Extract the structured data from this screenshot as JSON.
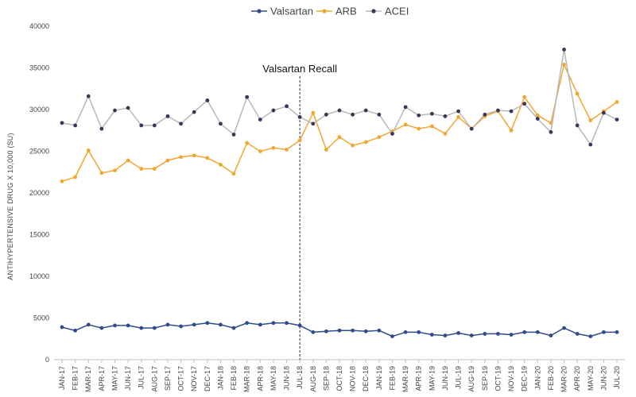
{
  "chart_data": {
    "type": "line",
    "title": "",
    "xlabel": "",
    "ylabel": "ANTIHYPERTENSIVE DRUG X 10,000 (SU)",
    "ylim": [
      0,
      40000
    ],
    "yticks": [
      0,
      5000,
      10000,
      15000,
      20000,
      25000,
      30000,
      35000,
      40000
    ],
    "legend_position": "top-center",
    "grid": false,
    "categories": [
      "JAN-17",
      "FEB-17",
      "MAR-17",
      "APR-17",
      "MAY-17",
      "JUN-17",
      "JUL-17",
      "AUG-17",
      "SEP-17",
      "OCT-17",
      "NOV-17",
      "DEC-17",
      "JAN-18",
      "FEB-18",
      "MAR-18",
      "APR-18",
      "MAY-18",
      "JUN-18",
      "JUL-18",
      "AUG-18",
      "SEP-18",
      "OCT-18",
      "NOV-18",
      "DEC-18",
      "JAN-19",
      "FEB-19",
      "MAR-19",
      "APR-19",
      "MAY-19",
      "JUN-19",
      "JUL-19",
      "AUG-19",
      "SEP-19",
      "OCT-19",
      "NOV-19",
      "DEC-19",
      "JAN-20",
      "FEB-20",
      "MAR-20",
      "APR-20",
      "MAY-20",
      "JUN-20",
      "JUL-20"
    ],
    "series": [
      {
        "name": "Valsartan",
        "color": "#2f4b8a",
        "values": [
          3900,
          3500,
          4200,
          3800,
          4100,
          4100,
          3800,
          3800,
          4200,
          4000,
          4200,
          4400,
          4200,
          3800,
          4400,
          4200,
          4400,
          4400,
          4100,
          3300,
          3400,
          3500,
          3500,
          3400,
          3500,
          2800,
          3300,
          3300,
          3000,
          2900,
          3200,
          2900,
          3100,
          3100,
          3000,
          3300,
          3300,
          2900,
          3800,
          3100,
          2800,
          3300,
          3300
        ]
      },
      {
        "name": "ARB",
        "color": "#f0a732",
        "values": [
          21400,
          21900,
          25100,
          22400,
          22700,
          23900,
          22900,
          22900,
          23900,
          24300,
          24500,
          24200,
          23400,
          22300,
          26000,
          25000,
          25400,
          25200,
          26300,
          29600,
          25200,
          26700,
          25700,
          26100,
          26700,
          27400,
          28200,
          27700,
          28000,
          27100,
          29100,
          27700,
          29200,
          29800,
          27500,
          31500,
          29300,
          28400,
          35400,
          31900,
          28700,
          29800,
          30900
        ]
      },
      {
        "name": "ACEI",
        "color": "#3b3657",
        "line_color": "#b8b8b8",
        "values": [
          28400,
          28100,
          31600,
          27700,
          29900,
          30200,
          28100,
          28100,
          29200,
          28300,
          29700,
          31100,
          28300,
          27000,
          31500,
          28800,
          29900,
          30400,
          29100,
          28300,
          29400,
          29900,
          29400,
          29900,
          29400,
          27100,
          30300,
          29300,
          29500,
          29200,
          29800,
          27700,
          29400,
          29900,
          29800,
          30700,
          28900,
          27300,
          37200,
          28100,
          25800,
          29600,
          28800
        ]
      }
    ],
    "annotations": [
      {
        "text": "Valsartan Recall",
        "at_category": "JUL-18"
      }
    ]
  }
}
